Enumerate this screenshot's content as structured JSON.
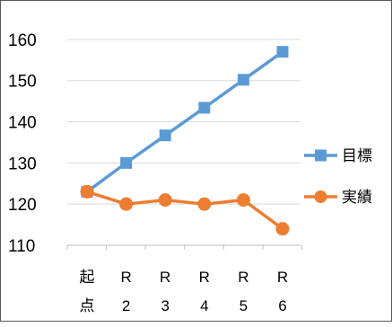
{
  "chart_data": {
    "type": "line",
    "categories": [
      [
        "起",
        "点"
      ],
      [
        "R",
        "2"
      ],
      [
        "R",
        "3"
      ],
      [
        "R",
        "4"
      ],
      [
        "R",
        "5"
      ],
      [
        "R",
        "6"
      ]
    ],
    "series": [
      {
        "name": "目標",
        "values": [
          123,
          130,
          136.7,
          143.4,
          150.2,
          157
        ],
        "color": "#5B9BD5",
        "marker": "square"
      },
      {
        "name": "実績",
        "values": [
          123,
          120,
          121,
          120,
          121,
          114
        ],
        "color": "#ED7D31",
        "marker": "circle"
      }
    ],
    "yticks": [
      110,
      120,
      130,
      140,
      150,
      160
    ],
    "ylim": [
      110,
      165
    ],
    "grid": true,
    "legend": "right"
  }
}
